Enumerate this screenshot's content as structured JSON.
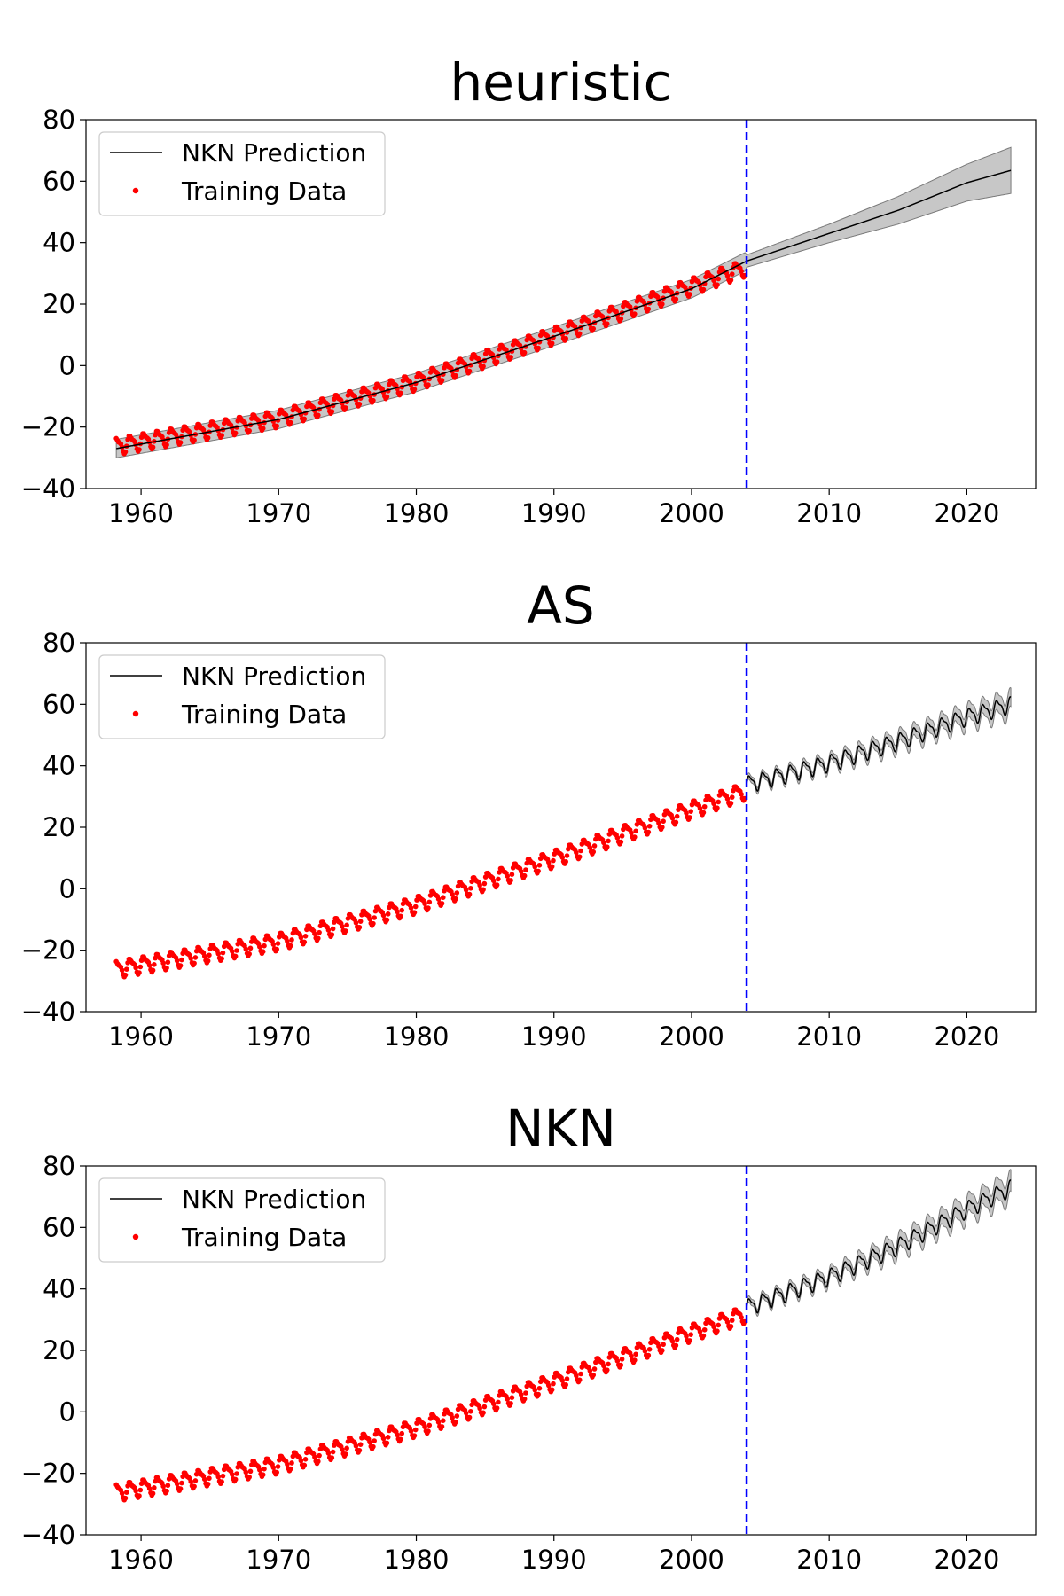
{
  "figure": {
    "legend": {
      "prediction_label": "NKN Prediction",
      "training_label": "Training Data",
      "placement": "upper-left"
    },
    "colors": {
      "prediction_line": "#000000",
      "training_points": "#ff0000",
      "cutoff_line": "#0000ff",
      "uncertainty_band": "#bdbdbd"
    }
  },
  "chart_data": [
    {
      "type": "line",
      "title": "heuristic",
      "xlim": [
        1956,
        2025
      ],
      "ylim": [
        -40,
        80
      ],
      "xticks": [
        1960,
        1970,
        1980,
        1990,
        2000,
        2010,
        2020
      ],
      "xtick_labels": [
        "1960",
        "1970",
        "1980",
        "1990",
        "2000",
        "2010",
        "2020"
      ],
      "yticks": [
        -40,
        -20,
        0,
        20,
        40,
        60,
        80
      ],
      "ytick_labels": [
        "−40",
        "−20",
        "0",
        "20",
        "40",
        "60",
        "80"
      ],
      "cutoff_x": 2004,
      "training_data": {
        "name": "Training Data",
        "x_range": [
          1958.2,
          2003.9
        ],
        "trend_points": [
          [
            1958.2,
            -26
          ],
          [
            1970,
            -17
          ],
          [
            1980,
            -5
          ],
          [
            1990,
            10
          ],
          [
            2000,
            26
          ],
          [
            2003.9,
            32
          ]
        ],
        "seasonal_amplitude": 3
      },
      "prediction": {
        "name": "NKN Prediction",
        "seasonal": false,
        "points": [
          [
            1958.2,
            -27
          ],
          [
            1970,
            -17.5
          ],
          [
            1980,
            -5.5
          ],
          [
            1990,
            9.5
          ],
          [
            2000,
            25
          ],
          [
            2004,
            34
          ],
          [
            2010,
            43
          ],
          [
            2015,
            50.5
          ],
          [
            2020,
            59.5
          ],
          [
            2023.2,
            63.5
          ]
        ],
        "band_halfwidth_points": [
          [
            1958.2,
            3
          ],
          [
            2003.9,
            3
          ],
          [
            2004,
            2
          ],
          [
            2010,
            3
          ],
          [
            2015,
            4.5
          ],
          [
            2020,
            6
          ],
          [
            2023.2,
            7.5
          ]
        ]
      }
    },
    {
      "type": "line",
      "title": "AS",
      "xlim": [
        1956,
        2025
      ],
      "ylim": [
        -40,
        80
      ],
      "xticks": [
        1960,
        1970,
        1980,
        1990,
        2000,
        2010,
        2020
      ],
      "xtick_labels": [
        "1960",
        "1970",
        "1980",
        "1990",
        "2000",
        "2010",
        "2020"
      ],
      "yticks": [
        -40,
        -20,
        0,
        20,
        40,
        60,
        80
      ],
      "ytick_labels": [
        "−40",
        "−20",
        "0",
        "20",
        "40",
        "60",
        "80"
      ],
      "cutoff_x": 2004,
      "training_data": {
        "name": "Training Data",
        "x_range": [
          1958.2,
          2003.9
        ],
        "trend_points": [
          [
            1958.2,
            -26
          ],
          [
            1970,
            -17
          ],
          [
            1980,
            -5
          ],
          [
            1990,
            10
          ],
          [
            2000,
            26
          ],
          [
            2003.9,
            32
          ]
        ],
        "seasonal_amplitude": 3
      },
      "prediction": {
        "name": "NKN Prediction",
        "seasonal": true,
        "seasonal_amplitude": 3,
        "trend_points": [
          [
            2004,
            34
          ],
          [
            2010,
            41
          ],
          [
            2015,
            48
          ],
          [
            2020,
            56
          ],
          [
            2023.2,
            60
          ]
        ],
        "band_halfwidth_points": [
          [
            2004,
            1
          ],
          [
            2010,
            1.3
          ],
          [
            2015,
            2
          ],
          [
            2020,
            2.5
          ],
          [
            2023.2,
            3
          ]
        ]
      }
    },
    {
      "type": "line",
      "title": "NKN",
      "xlim": [
        1956,
        2025
      ],
      "ylim": [
        -40,
        80
      ],
      "xticks": [
        1960,
        1970,
        1980,
        1990,
        2000,
        2010,
        2020
      ],
      "xtick_labels": [
        "1960",
        "1970",
        "1980",
        "1990",
        "2000",
        "2010",
        "2020"
      ],
      "yticks": [
        -40,
        -20,
        0,
        20,
        40,
        60,
        80
      ],
      "ytick_labels": [
        "−40",
        "−20",
        "0",
        "20",
        "40",
        "60",
        "80"
      ],
      "cutoff_x": 2004,
      "training_data": {
        "name": "Training Data",
        "x_range": [
          1958.2,
          2003.9
        ],
        "trend_points": [
          [
            1958.2,
            -26
          ],
          [
            1970,
            -17
          ],
          [
            1980,
            -5
          ],
          [
            1990,
            10
          ],
          [
            2000,
            26
          ],
          [
            2003.9,
            32
          ]
        ],
        "seasonal_amplitude": 3
      },
      "prediction": {
        "name": "NKN Prediction",
        "seasonal": true,
        "seasonal_amplitude": 3,
        "trend_points": [
          [
            2004,
            34
          ],
          [
            2010,
            44
          ],
          [
            2015,
            54
          ],
          [
            2020,
            66
          ],
          [
            2023.2,
            73
          ]
        ],
        "band_halfwidth_points": [
          [
            2004,
            1
          ],
          [
            2010,
            1.5
          ],
          [
            2015,
            2.5
          ],
          [
            2020,
            3
          ],
          [
            2023.2,
            3.5
          ]
        ]
      }
    }
  ]
}
